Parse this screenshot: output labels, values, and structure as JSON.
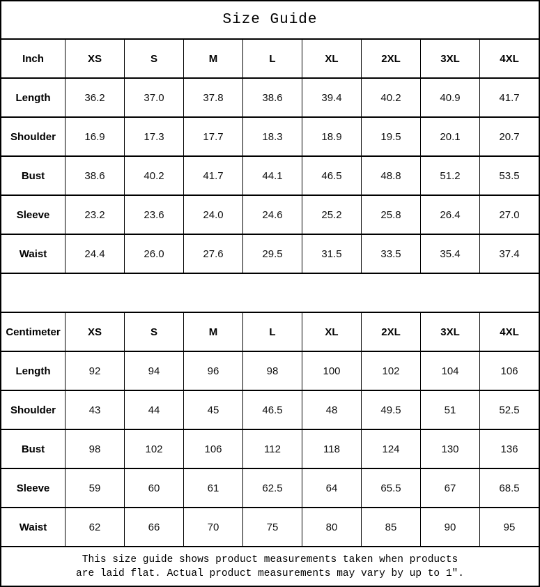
{
  "title": "Size Guide",
  "chart_data": [
    {
      "type": "table",
      "name": "inch-table",
      "unit": "Inch",
      "columns": [
        "Inch",
        "XS",
        "S",
        "M",
        "L",
        "XL",
        "2XL",
        "3XL",
        "4XL"
      ],
      "rows": [
        [
          "Length",
          "36.2",
          "37.0",
          "37.8",
          "38.6",
          "39.4",
          "40.2",
          "40.9",
          "41.7"
        ],
        [
          "Shoulder",
          "16.9",
          "17.3",
          "17.7",
          "18.3",
          "18.9",
          "19.5",
          "20.1",
          "20.7"
        ],
        [
          "Bust",
          "38.6",
          "40.2",
          "41.7",
          "44.1",
          "46.5",
          "48.8",
          "51.2",
          "53.5"
        ],
        [
          "Sleeve",
          "23.2",
          "23.6",
          "24.0",
          "24.6",
          "25.2",
          "25.8",
          "26.4",
          "27.0"
        ],
        [
          "Waist",
          "24.4",
          "26.0",
          "27.6",
          "29.5",
          "31.5",
          "33.5",
          "35.4",
          "37.4"
        ]
      ]
    },
    {
      "type": "table",
      "name": "centimeter-table",
      "unit": "Centimeter",
      "columns": [
        "Centimeter",
        "XS",
        "S",
        "M",
        "L",
        "XL",
        "2XL",
        "3XL",
        "4XL"
      ],
      "rows": [
        [
          "Length",
          "92",
          "94",
          "96",
          "98",
          "100",
          "102",
          "104",
          "106"
        ],
        [
          "Shoulder",
          "43",
          "44",
          "45",
          "46.5",
          "48",
          "49.5",
          "51",
          "52.5"
        ],
        [
          "Bust",
          "98",
          "102",
          "106",
          "112",
          "118",
          "124",
          "130",
          "136"
        ],
        [
          "Sleeve",
          "59",
          "60",
          "61",
          "62.5",
          "64",
          "65.5",
          "67",
          "68.5"
        ],
        [
          "Waist",
          "62",
          "66",
          "70",
          "75",
          "80",
          "85",
          "90",
          "95"
        ]
      ]
    }
  ],
  "footnote": {
    "line1": "This size guide shows product measurements taken when products",
    "line2": "are laid flat. Actual product measurements may vary by up to 1″."
  }
}
